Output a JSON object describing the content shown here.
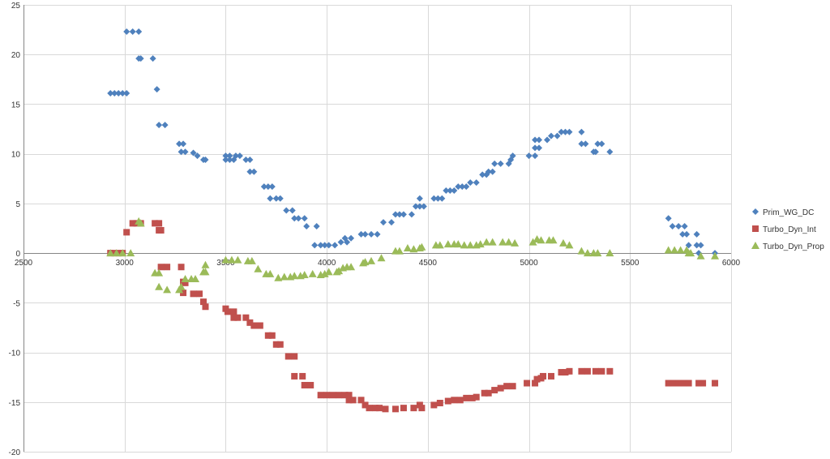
{
  "chart_data": {
    "type": "scatter",
    "title": "",
    "xlabel": "",
    "ylabel": "",
    "xlim": [
      2500,
      6000
    ],
    "ylim": [
      -20,
      25
    ],
    "x_ticks": [
      2500,
      3000,
      3500,
      4000,
      4500,
      5000,
      5500,
      6000
    ],
    "y_ticks": [
      -20,
      -15,
      -10,
      -5,
      0,
      5,
      10,
      15,
      20,
      25
    ],
    "x_tick_labels": [
      "2500",
      "3000",
      "3500",
      "4000",
      "4500",
      "5000",
      "5500",
      "6000"
    ],
    "y_tick_labels": [
      "-20",
      "-15",
      "-10",
      "-5",
      "0",
      "5",
      "10",
      "15",
      "20",
      "25"
    ],
    "grid": true,
    "legend_position": "right",
    "series": [
      {
        "name": "Prim_WG_DC",
        "marker": "diamond",
        "color": "#4F81BD",
        "points": [
          [
            2930,
            16.1
          ],
          [
            2950,
            16.1
          ],
          [
            2970,
            16.1
          ],
          [
            2990,
            16.1
          ],
          [
            3010,
            16.1
          ],
          [
            3010,
            22.3
          ],
          [
            3040,
            22.3
          ],
          [
            3070,
            22.3
          ],
          [
            3070,
            19.6
          ],
          [
            3080,
            19.6
          ],
          [
            3140,
            19.6
          ],
          [
            3160,
            16.5
          ],
          [
            3170,
            12.9
          ],
          [
            3200,
            12.9
          ],
          [
            3270,
            11.0
          ],
          [
            3290,
            11.0
          ],
          [
            3280,
            10.2
          ],
          [
            3300,
            10.2
          ],
          [
            3340,
            10.1
          ],
          [
            3360,
            9.8
          ],
          [
            3390,
            9.4
          ],
          [
            3400,
            9.4
          ],
          [
            3500,
            9.8
          ],
          [
            3520,
            9.8
          ],
          [
            3550,
            9.8
          ],
          [
            3570,
            9.8
          ],
          [
            3500,
            9.4
          ],
          [
            3520,
            9.4
          ],
          [
            3540,
            9.4
          ],
          [
            3600,
            9.4
          ],
          [
            3620,
            9.4
          ],
          [
            3620,
            8.2
          ],
          [
            3640,
            8.2
          ],
          [
            3690,
            6.7
          ],
          [
            3710,
            6.7
          ],
          [
            3730,
            6.7
          ],
          [
            3720,
            5.5
          ],
          [
            3750,
            5.5
          ],
          [
            3770,
            5.5
          ],
          [
            3800,
            4.3
          ],
          [
            3830,
            4.3
          ],
          [
            3840,
            3.5
          ],
          [
            3860,
            3.5
          ],
          [
            3890,
            3.5
          ],
          [
            3900,
            2.7
          ],
          [
            3950,
            2.7
          ],
          [
            3940,
            0.8
          ],
          [
            3970,
            0.8
          ],
          [
            3990,
            0.8
          ],
          [
            4010,
            0.8
          ],
          [
            4040,
            0.8
          ],
          [
            4070,
            1.1
          ],
          [
            4090,
            1.5
          ],
          [
            4100,
            1.1
          ],
          [
            4120,
            1.5
          ],
          [
            4170,
            1.9
          ],
          [
            4190,
            1.9
          ],
          [
            4220,
            1.9
          ],
          [
            4250,
            1.9
          ],
          [
            4280,
            3.1
          ],
          [
            4320,
            3.1
          ],
          [
            4340,
            3.9
          ],
          [
            4360,
            3.9
          ],
          [
            4380,
            3.9
          ],
          [
            4420,
            3.9
          ],
          [
            4440,
            4.7
          ],
          [
            4460,
            4.7
          ],
          [
            4480,
            4.7
          ],
          [
            4460,
            5.5
          ],
          [
            4530,
            5.5
          ],
          [
            4550,
            5.5
          ],
          [
            4570,
            5.5
          ],
          [
            4590,
            6.3
          ],
          [
            4610,
            6.3
          ],
          [
            4630,
            6.3
          ],
          [
            4650,
            6.7
          ],
          [
            4670,
            6.7
          ],
          [
            4690,
            6.7
          ],
          [
            4710,
            7.1
          ],
          [
            4740,
            7.1
          ],
          [
            4770,
            7.9
          ],
          [
            4790,
            7.9
          ],
          [
            4800,
            8.2
          ],
          [
            4820,
            8.2
          ],
          [
            4830,
            9.0
          ],
          [
            4860,
            9.0
          ],
          [
            4900,
            9.0
          ],
          [
            4910,
            9.4
          ],
          [
            4920,
            9.8
          ],
          [
            5000,
            9.8
          ],
          [
            5030,
            9.8
          ],
          [
            5030,
            10.6
          ],
          [
            5050,
            10.6
          ],
          [
            5030,
            11.4
          ],
          [
            5050,
            11.4
          ],
          [
            5090,
            11.4
          ],
          [
            5110,
            11.8
          ],
          [
            5140,
            11.8
          ],
          [
            5160,
            12.2
          ],
          [
            5180,
            12.2
          ],
          [
            5200,
            12.2
          ],
          [
            5260,
            12.2
          ],
          [
            5260,
            11.0
          ],
          [
            5280,
            11.0
          ],
          [
            5320,
            10.2
          ],
          [
            5330,
            10.2
          ],
          [
            5340,
            11.0
          ],
          [
            5360,
            11.0
          ],
          [
            5400,
            10.2
          ],
          [
            5690,
            3.5
          ],
          [
            5710,
            2.7
          ],
          [
            5740,
            2.7
          ],
          [
            5770,
            2.7
          ],
          [
            5760,
            1.9
          ],
          [
            5780,
            1.9
          ],
          [
            5790,
            0.8
          ],
          [
            5830,
            1.9
          ],
          [
            5830,
            0.8
          ],
          [
            5850,
            0.8
          ],
          [
            5840,
            0.0
          ],
          [
            5920,
            0.0
          ]
        ]
      },
      {
        "name": "Turbo_Dyn_Int",
        "marker": "square",
        "color": "#C0504D",
        "points": [
          [
            2930,
            0.0
          ],
          [
            2950,
            0.0
          ],
          [
            2970,
            0.0
          ],
          [
            2990,
            0.0
          ],
          [
            3010,
            2.1
          ],
          [
            3040,
            3.0
          ],
          [
            3060,
            3.0
          ],
          [
            3080,
            3.0
          ],
          [
            3150,
            3.0
          ],
          [
            3170,
            3.0
          ],
          [
            3170,
            2.3
          ],
          [
            3180,
            2.3
          ],
          [
            3180,
            -1.4
          ],
          [
            3210,
            -1.4
          ],
          [
            3280,
            -1.4
          ],
          [
            3290,
            -2.9
          ],
          [
            3300,
            -3.0
          ],
          [
            3290,
            -4.0
          ],
          [
            3340,
            -4.1
          ],
          [
            3370,
            -4.1
          ],
          [
            3390,
            -4.9
          ],
          [
            3400,
            -5.4
          ],
          [
            3500,
            -5.6
          ],
          [
            3510,
            -5.9
          ],
          [
            3540,
            -5.9
          ],
          [
            3540,
            -6.5
          ],
          [
            3560,
            -6.5
          ],
          [
            3600,
            -6.5
          ],
          [
            3620,
            -7.0
          ],
          [
            3640,
            -7.3
          ],
          [
            3670,
            -7.3
          ],
          [
            3710,
            -8.3
          ],
          [
            3730,
            -8.3
          ],
          [
            3750,
            -9.2
          ],
          [
            3770,
            -9.2
          ],
          [
            3810,
            -10.4
          ],
          [
            3840,
            -10.4
          ],
          [
            3840,
            -12.4
          ],
          [
            3880,
            -12.4
          ],
          [
            3890,
            -13.3
          ],
          [
            3920,
            -13.3
          ],
          [
            3970,
            -14.3
          ],
          [
            4000,
            -14.3
          ],
          [
            4030,
            -14.3
          ],
          [
            4060,
            -14.3
          ],
          [
            4090,
            -14.3
          ],
          [
            4110,
            -14.3
          ],
          [
            4110,
            -14.8
          ],
          [
            4130,
            -14.8
          ],
          [
            4170,
            -14.8
          ],
          [
            4190,
            -15.3
          ],
          [
            4210,
            -15.6
          ],
          [
            4240,
            -15.6
          ],
          [
            4260,
            -15.6
          ],
          [
            4290,
            -15.7
          ],
          [
            4340,
            -15.7
          ],
          [
            4380,
            -15.6
          ],
          [
            4430,
            -15.6
          ],
          [
            4460,
            -15.3
          ],
          [
            4470,
            -15.6
          ],
          [
            4530,
            -15.3
          ],
          [
            4560,
            -15.1
          ],
          [
            4600,
            -14.9
          ],
          [
            4630,
            -14.8
          ],
          [
            4660,
            -14.8
          ],
          [
            4690,
            -14.6
          ],
          [
            4720,
            -14.6
          ],
          [
            4740,
            -14.5
          ],
          [
            4780,
            -14.1
          ],
          [
            4800,
            -14.1
          ],
          [
            4830,
            -13.8
          ],
          [
            4860,
            -13.6
          ],
          [
            4890,
            -13.4
          ],
          [
            4920,
            -13.4
          ],
          [
            4990,
            -13.1
          ],
          [
            5030,
            -13.1
          ],
          [
            5040,
            -12.7
          ],
          [
            5060,
            -12.6
          ],
          [
            5070,
            -12.4
          ],
          [
            5110,
            -12.4
          ],
          [
            5160,
            -12.0
          ],
          [
            5180,
            -12.0
          ],
          [
            5200,
            -11.9
          ],
          [
            5260,
            -11.9
          ],
          [
            5290,
            -11.9
          ],
          [
            5330,
            -11.9
          ],
          [
            5360,
            -11.9
          ],
          [
            5400,
            -11.9
          ],
          [
            5690,
            -13.1
          ],
          [
            5710,
            -13.1
          ],
          [
            5740,
            -13.1
          ],
          [
            5770,
            -13.1
          ],
          [
            5790,
            -13.1
          ],
          [
            5840,
            -13.1
          ],
          [
            5860,
            -13.1
          ],
          [
            5920,
            -13.1
          ]
        ]
      },
      {
        "name": "Turbo_Dyn_Prop",
        "marker": "triangle",
        "color": "#9BBB59",
        "points": [
          [
            2930,
            0.0
          ],
          [
            2960,
            0.0
          ],
          [
            2990,
            0.0
          ],
          [
            3030,
            0.0
          ],
          [
            3070,
            3.2
          ],
          [
            3080,
            3.0
          ],
          [
            3150,
            -2.0
          ],
          [
            3170,
            -2.0
          ],
          [
            3170,
            -3.4
          ],
          [
            3210,
            -3.7
          ],
          [
            3280,
            -3.4
          ],
          [
            3270,
            -3.7
          ],
          [
            3300,
            -2.6
          ],
          [
            3330,
            -2.6
          ],
          [
            3350,
            -2.6
          ],
          [
            3390,
            -1.9
          ],
          [
            3400,
            -1.9
          ],
          [
            3400,
            -1.2
          ],
          [
            3500,
            -0.7
          ],
          [
            3530,
            -0.7
          ],
          [
            3560,
            -0.7
          ],
          [
            3610,
            -0.8
          ],
          [
            3630,
            -0.8
          ],
          [
            3660,
            -1.6
          ],
          [
            3700,
            -2.1
          ],
          [
            3720,
            -2.1
          ],
          [
            3760,
            -2.5
          ],
          [
            3790,
            -2.4
          ],
          [
            3820,
            -2.4
          ],
          [
            3840,
            -2.3
          ],
          [
            3870,
            -2.3
          ],
          [
            3890,
            -2.2
          ],
          [
            3930,
            -2.1
          ],
          [
            3970,
            -2.2
          ],
          [
            3990,
            -2.1
          ],
          [
            4010,
            -1.9
          ],
          [
            4050,
            -1.9
          ],
          [
            4060,
            -1.8
          ],
          [
            4080,
            -1.5
          ],
          [
            4100,
            -1.4
          ],
          [
            4120,
            -1.4
          ],
          [
            4180,
            -1.0
          ],
          [
            4190,
            -0.9
          ],
          [
            4220,
            -0.8
          ],
          [
            4270,
            -0.5
          ],
          [
            4340,
            0.2
          ],
          [
            4360,
            0.2
          ],
          [
            4400,
            0.5
          ],
          [
            4430,
            0.4
          ],
          [
            4460,
            0.5
          ],
          [
            4470,
            0.6
          ],
          [
            4540,
            0.8
          ],
          [
            4560,
            0.8
          ],
          [
            4600,
            0.9
          ],
          [
            4630,
            0.9
          ],
          [
            4650,
            0.9
          ],
          [
            4680,
            0.8
          ],
          [
            4710,
            0.8
          ],
          [
            4740,
            0.8
          ],
          [
            4760,
            0.9
          ],
          [
            4790,
            1.1
          ],
          [
            4820,
            1.1
          ],
          [
            4870,
            1.1
          ],
          [
            4900,
            1.1
          ],
          [
            4930,
            1.0
          ],
          [
            5020,
            1.1
          ],
          [
            5040,
            1.4
          ],
          [
            5060,
            1.3
          ],
          [
            5100,
            1.3
          ],
          [
            5120,
            1.3
          ],
          [
            5170,
            1.0
          ],
          [
            5200,
            0.8
          ],
          [
            5260,
            0.2
          ],
          [
            5290,
            0.0
          ],
          [
            5320,
            0.0
          ],
          [
            5340,
            0.0
          ],
          [
            5400,
            0.0
          ],
          [
            5690,
            0.3
          ],
          [
            5720,
            0.3
          ],
          [
            5750,
            0.3
          ],
          [
            5780,
            0.3
          ],
          [
            5790,
            0.0
          ],
          [
            5800,
            0.0
          ],
          [
            5850,
            -0.3
          ],
          [
            5920,
            -0.3
          ]
        ]
      }
    ]
  }
}
